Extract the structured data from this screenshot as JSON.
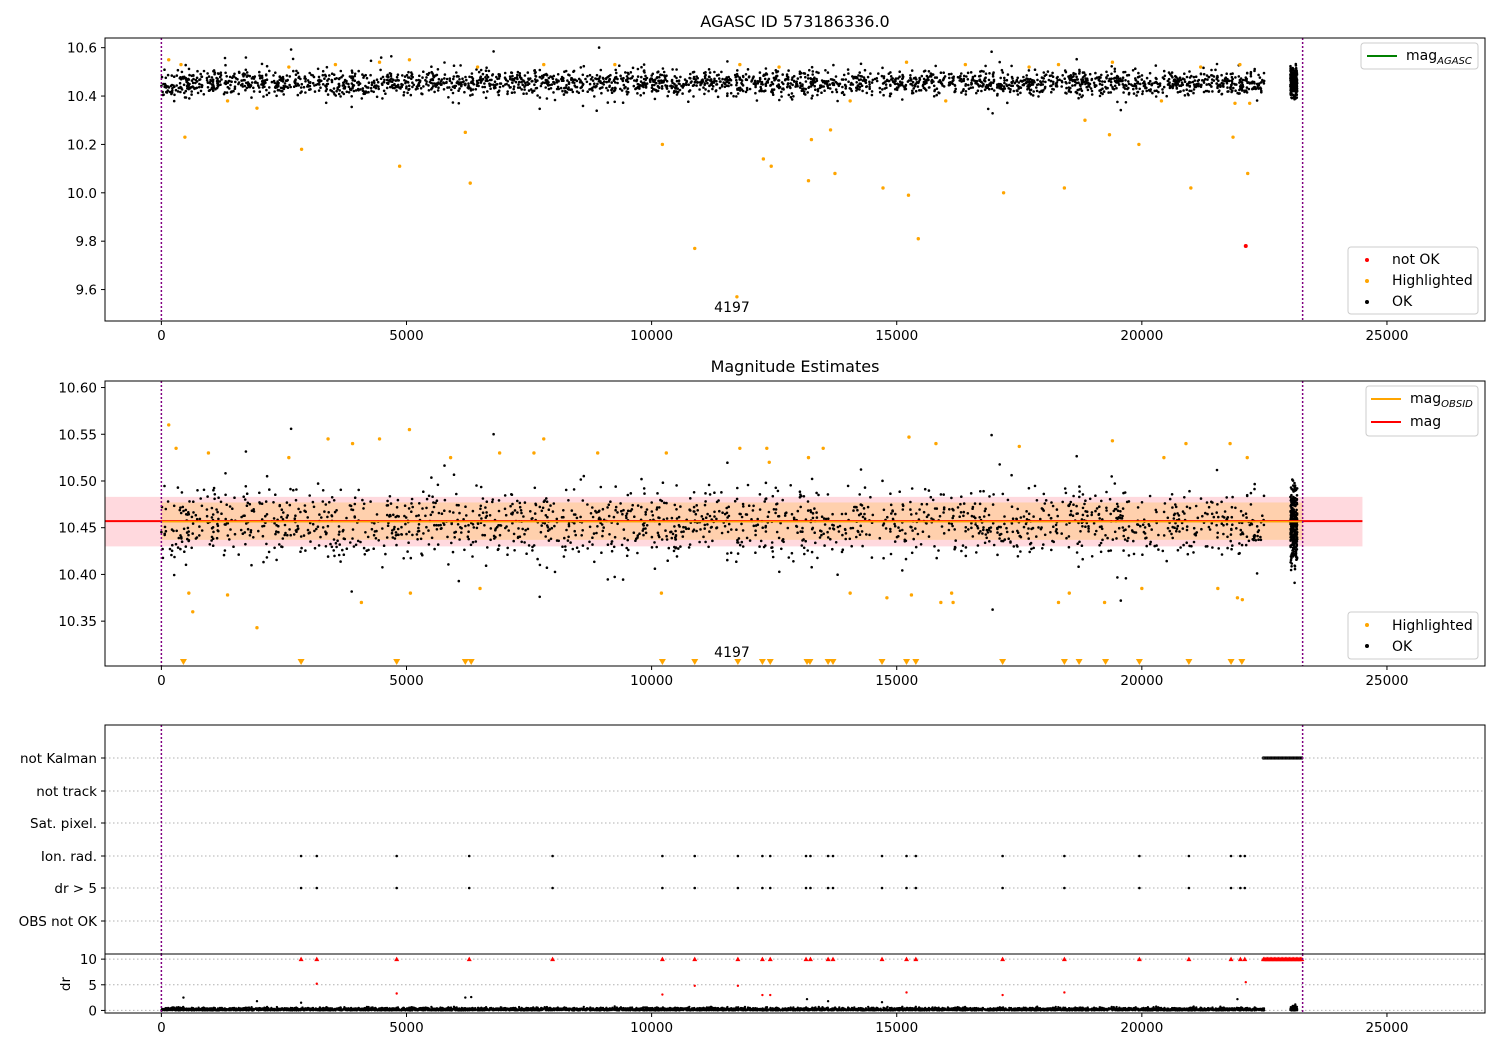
{
  "colors": {
    "ok": "#000000",
    "highlighted": "#ffa500",
    "not_ok": "#ff0000",
    "agasc_line": "#008000",
    "obsid_line": "#ffa500",
    "mag_line": "#ff0000",
    "band_light": "#ffc0c8",
    "band_orange": "#ffcc99",
    "vline": "#800080",
    "grid": "#b0b0b0"
  },
  "chart_data": [
    {
      "type": "scatter",
      "title": "AGASC ID 573186336.0",
      "xlim": [
        -1150,
        27000
      ],
      "ylim": [
        9.47,
        10.64
      ],
      "xticks": [
        0,
        5000,
        10000,
        15000,
        20000,
        25000
      ],
      "yticks": [
        "10.6",
        "10.4",
        "10.2",
        "10.0",
        "9.8",
        "9.6"
      ],
      "vlines": [
        0,
        23280
      ],
      "annotation": {
        "text": "4197",
        "x": 11500,
        "y": 9.505
      },
      "legend_lines": [
        {
          "label": "mag",
          "sub": "AGASC"
        }
      ],
      "legend_points": [
        "not OK",
        "Highlighted",
        "OK"
      ],
      "ok_band": {
        "x": [
          0,
          22500
        ],
        "center": 10.455,
        "spread": 0.045
      },
      "ok_cluster": {
        "x": [
          23030,
          23170
        ],
        "center": 10.455,
        "spread": 0.045
      },
      "highlighted_points": [
        [
          480,
          10.23
        ],
        [
          2860,
          10.18
        ],
        [
          4860,
          10.11
        ],
        [
          6200,
          10.25
        ],
        [
          6300,
          10.04
        ],
        [
          10220,
          10.2
        ],
        [
          10880,
          9.77
        ],
        [
          11740,
          9.57
        ],
        [
          12280,
          10.14
        ],
        [
          12440,
          10.11
        ],
        [
          13200,
          10.05
        ],
        [
          13260,
          10.22
        ],
        [
          13650,
          10.26
        ],
        [
          13740,
          10.08
        ],
        [
          14720,
          10.02
        ],
        [
          15240,
          9.99
        ],
        [
          15440,
          9.81
        ],
        [
          17180,
          10.0
        ],
        [
          18420,
          10.02
        ],
        [
          18840,
          10.3
        ],
        [
          19340,
          10.24
        ],
        [
          19940,
          10.2
        ],
        [
          21000,
          10.02
        ],
        [
          21860,
          10.23
        ],
        [
          22160,
          10.08
        ],
        [
          150,
          10.55
        ],
        [
          400,
          10.53
        ],
        [
          1350,
          10.38
        ],
        [
          1950,
          10.35
        ],
        [
          2600,
          10.52
        ],
        [
          3550,
          10.53
        ],
        [
          4450,
          10.54
        ],
        [
          5060,
          10.55
        ],
        [
          6450,
          10.52
        ],
        [
          7800,
          10.53
        ],
        [
          9250,
          10.53
        ],
        [
          11800,
          10.53
        ],
        [
          12600,
          10.52
        ],
        [
          14050,
          10.38
        ],
        [
          15200,
          10.54
        ],
        [
          16000,
          10.38
        ],
        [
          16400,
          10.53
        ],
        [
          17700,
          10.52
        ],
        [
          18300,
          10.53
        ],
        [
          19400,
          10.54
        ],
        [
          20400,
          10.38
        ],
        [
          21200,
          10.52
        ],
        [
          21900,
          10.37
        ],
        [
          22000,
          10.53
        ],
        [
          22200,
          10.37
        ]
      ],
      "not_ok_points": [
        [
          22120,
          9.78
        ]
      ]
    },
    {
      "type": "scatter",
      "title": "Magnitude Estimates",
      "xlim": [
        -1150,
        27000
      ],
      "ylim": [
        10.302,
        10.607
      ],
      "xticks": [
        0,
        5000,
        10000,
        15000,
        20000,
        25000
      ],
      "yticks": [
        "10.60",
        "10.55",
        "10.50",
        "10.45",
        "10.40",
        "10.35"
      ],
      "vlines": [
        0,
        23280
      ],
      "annotation": {
        "text": "4197",
        "x": 11500,
        "y": 10.3125
      },
      "legend_lines": [
        {
          "label": "mag",
          "sub": "OBSID"
        },
        {
          "label": "mag",
          "sub": ""
        }
      ],
      "legend_points": [
        "Highlighted",
        "OK"
      ],
      "mag_line": {
        "y": 10.457,
        "x": [
          -1150,
          24500
        ]
      },
      "band_light": {
        "x": [
          -1150,
          24500
        ],
        "y": [
          10.43,
          10.483
        ]
      },
      "band_orange": {
        "x": [
          0,
          23280
        ],
        "y": [
          10.437,
          10.477
        ]
      },
      "ok_band": {
        "x": [
          0,
          22500
        ],
        "center": 10.455,
        "spread": 0.033
      },
      "ok_cluster": {
        "x": [
          23030,
          23170
        ],
        "center": 10.455,
        "spread": 0.035
      },
      "highlighted_points": [
        [
          150,
          10.56
        ],
        [
          300,
          10.535
        ],
        [
          560,
          10.38
        ],
        [
          640,
          10.36
        ],
        [
          960,
          10.53
        ],
        [
          1350,
          10.378
        ],
        [
          1950,
          10.343
        ],
        [
          2600,
          10.525
        ],
        [
          3400,
          10.545
        ],
        [
          3900,
          10.54
        ],
        [
          4080,
          10.37
        ],
        [
          4450,
          10.545
        ],
        [
          5060,
          10.555
        ],
        [
          5080,
          10.38
        ],
        [
          5900,
          10.525
        ],
        [
          6500,
          10.385
        ],
        [
          6900,
          10.53
        ],
        [
          7600,
          10.53
        ],
        [
          7800,
          10.545
        ],
        [
          8900,
          10.53
        ],
        [
          10200,
          10.38
        ],
        [
          10300,
          10.53
        ],
        [
          11800,
          10.535
        ],
        [
          12350,
          10.535
        ],
        [
          12400,
          10.52
        ],
        [
          13200,
          10.525
        ],
        [
          13500,
          10.535
        ],
        [
          14050,
          10.38
        ],
        [
          14800,
          10.375
        ],
        [
          15250,
          10.547
        ],
        [
          15300,
          10.378
        ],
        [
          15800,
          10.54
        ],
        [
          15900,
          10.37
        ],
        [
          16120,
          10.38
        ],
        [
          16150,
          10.37
        ],
        [
          17500,
          10.537
        ],
        [
          18300,
          10.37
        ],
        [
          18520,
          10.38
        ],
        [
          19240,
          10.37
        ],
        [
          19400,
          10.543
        ],
        [
          20000,
          10.385
        ],
        [
          20450,
          10.525
        ],
        [
          20900,
          10.54
        ],
        [
          21550,
          10.385
        ],
        [
          21800,
          10.54
        ],
        [
          21950,
          10.375
        ],
        [
          22050,
          10.373
        ],
        [
          22150,
          10.525
        ]
      ],
      "triangle_markers_x": [
        450,
        2850,
        4800,
        6200,
        6320,
        10220,
        10880,
        11760,
        12260,
        12420,
        13170,
        13230,
        13600,
        13700,
        14700,
        15200,
        15390,
        17160,
        18420,
        18720,
        19260,
        19950,
        20960,
        21820,
        22040
      ]
    },
    {
      "type": "scatter",
      "xlim": [
        -1150,
        27000
      ],
      "xticks": [
        0,
        5000,
        10000,
        15000,
        20000,
        25000
      ],
      "vlines": [
        0,
        23280
      ],
      "flag_rows": [
        "not Kalman",
        "not track",
        "Sat. pixel.",
        "Ion. rad.",
        "dr > 5",
        "OBS not OK"
      ],
      "flag_events_x": [
        2850,
        3170,
        4800,
        6280,
        7980,
        10220,
        10880,
        11760,
        12260,
        12420,
        13150,
        13240,
        13600,
        13700,
        14700,
        15200,
        15390,
        17160,
        18420,
        19950,
        20960,
        21820,
        22010,
        22100
      ],
      "not_kalman_range": [
        22480,
        23290
      ],
      "dr": {
        "ylabel": "dr",
        "ylim": [
          -0.5,
          11
        ],
        "yticks": [
          "10",
          "5",
          "0"
        ],
        "capped_range": [
          22480,
          23290
        ],
        "red_points": [
          [
            3170,
            5.2
          ],
          [
            4800,
            3.3
          ],
          [
            10220,
            3.1
          ],
          [
            10880,
            4.8
          ],
          [
            11760,
            4.8
          ],
          [
            12260,
            3.0
          ],
          [
            12420,
            3.0
          ],
          [
            15200,
            3.5
          ],
          [
            17160,
            3.0
          ],
          [
            18420,
            3.5
          ],
          [
            22120,
            5.5
          ]
        ],
        "outlier_points": [
          [
            450,
            2.5
          ],
          [
            1950,
            1.8
          ],
          [
            2850,
            1.5
          ],
          [
            6200,
            2.5
          ],
          [
            6320,
            2.6
          ],
          [
            13170,
            2.2
          ],
          [
            13600,
            1.8
          ],
          [
            14700,
            1.6
          ],
          [
            21950,
            2.2
          ]
        ]
      }
    }
  ]
}
